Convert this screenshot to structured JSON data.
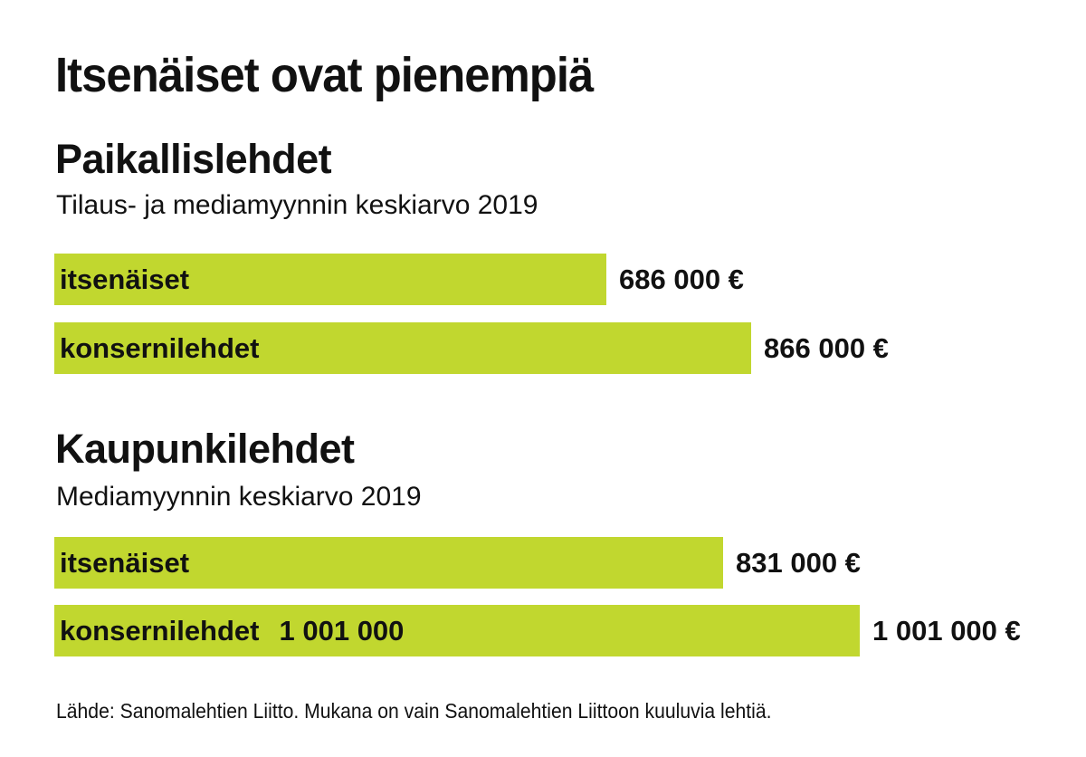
{
  "title": "Itsenäiset ovat pienempiä",
  "source": "Lähde: Sanomalehtien Liitto. Mukana on vain Sanomalehtien Liittoon kuuluvia lehtiä.",
  "colors": {
    "bar": "#c1d72f",
    "text": "#111111",
    "background": "#ffffff"
  },
  "chart_data": [
    {
      "type": "bar",
      "orientation": "horizontal",
      "title": "Paikallislehdet",
      "subtitle": "Tilaus- ja mediamyynnin keskiarvo 2019",
      "categories": [
        "itsenäiset",
        "konsernilehdet"
      ],
      "values": [
        686000,
        866000
      ],
      "value_labels": [
        "686 000 €",
        "866 000 €"
      ],
      "inner_labels": [
        "",
        ""
      ],
      "unit": "€",
      "xlim": [
        0,
        1001000
      ],
      "grid": false,
      "legend": "none"
    },
    {
      "type": "bar",
      "orientation": "horizontal",
      "title": "Kaupunkilehdet",
      "subtitle": "Mediamyynnin keskiarvo 2019",
      "categories": [
        "itsenäiset",
        "konsernilehdet"
      ],
      "values": [
        831000,
        1001000
      ],
      "value_labels": [
        "831 000 €",
        "1 001 000 €"
      ],
      "inner_labels": [
        "",
        "1 001 000"
      ],
      "unit": "€",
      "xlim": [
        0,
        1001000
      ],
      "grid": false,
      "legend": "none"
    }
  ]
}
